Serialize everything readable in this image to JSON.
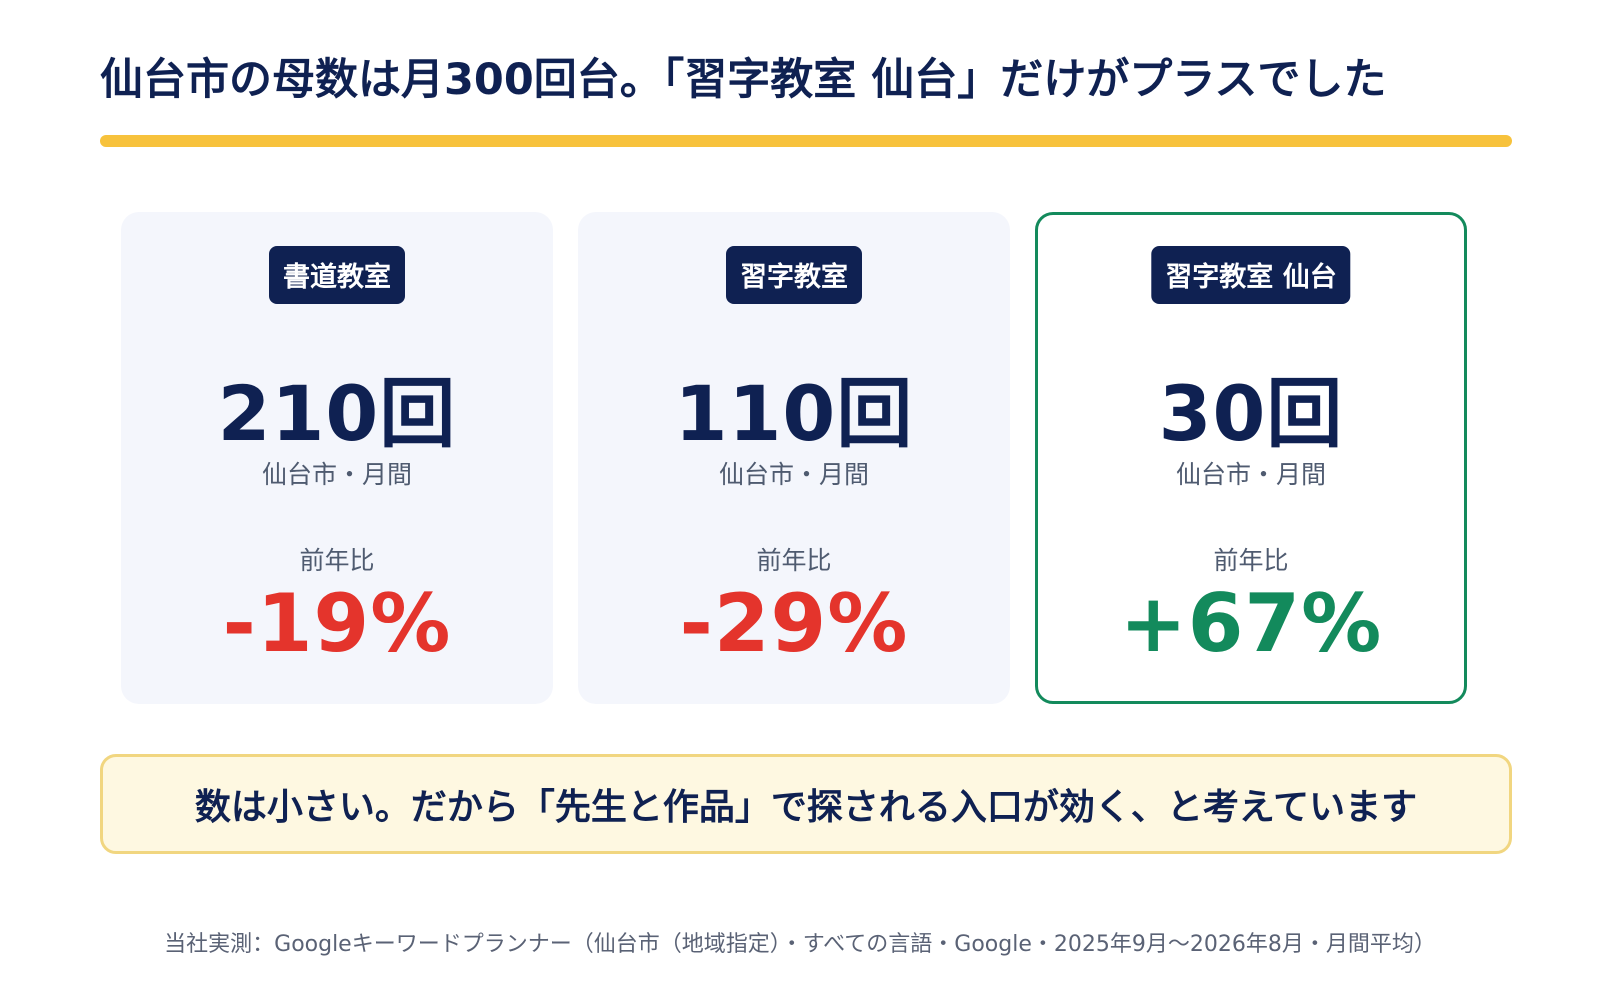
{
  "headline": "仙台市の母数は月300回台。「習字教室 仙台」だけがプラスでした",
  "colors": {
    "navy": "#0f2152",
    "accent_bar": "#f7c23c",
    "negative": "#e4342c",
    "positive": "#138a5c",
    "card_bg": "#f4f6fc",
    "callout_bg": "#fef8e1",
    "callout_border": "#f1d680"
  },
  "cards": [
    {
      "keyword": "書道教室",
      "volume": "210回",
      "scope": "仙台市・月間",
      "yoy_label": "前年比",
      "yoy": "-19%"
    },
    {
      "keyword": "習字教室",
      "volume": "110回",
      "scope": "仙台市・月間",
      "yoy_label": "前年比",
      "yoy": "-29%"
    },
    {
      "keyword": "習字教室 仙台",
      "volume": "30回",
      "scope": "仙台市・月間",
      "yoy_label": "前年比",
      "yoy": "+67%",
      "highlighted": true
    }
  ],
  "callout": "数は小さい。だから「先生と作品」で探される入口が効く、と考えています",
  "source": "当社実測：Googleキーワードプランナー（仙台市（地域指定）・すべての言語・Google・2025年9月〜2026年8月・月間平均）"
}
